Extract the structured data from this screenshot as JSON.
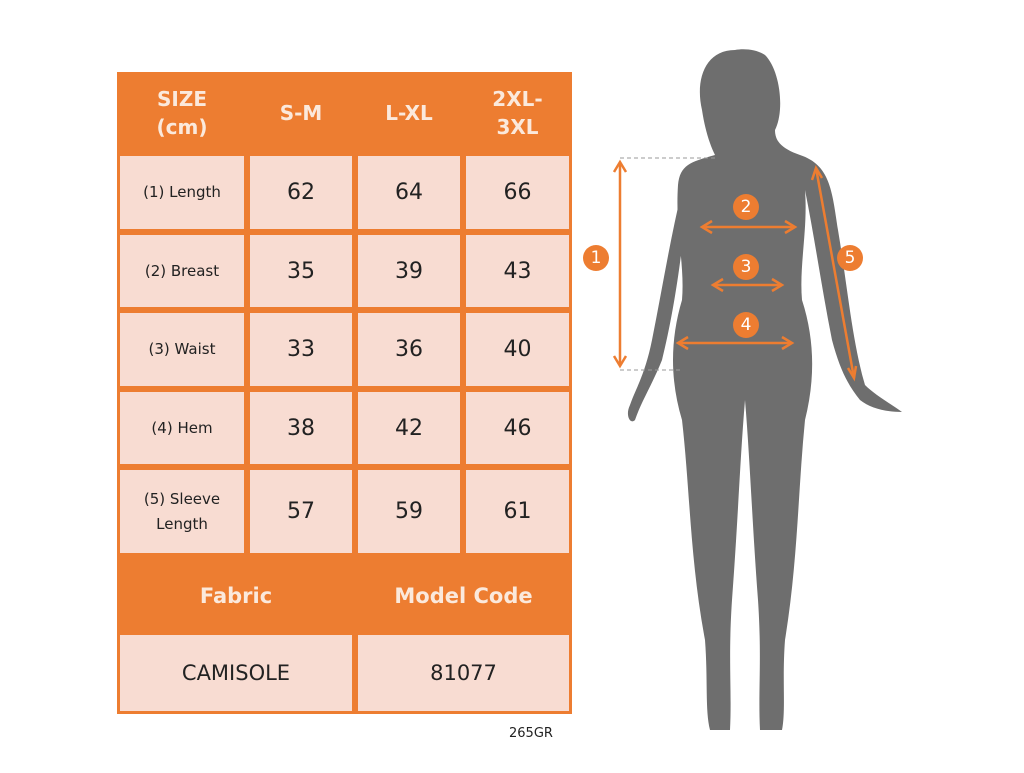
{
  "table": {
    "headers": [
      "SIZE\n(cm)",
      "S-M",
      "L-XL",
      "2XL-\n3XL"
    ],
    "rows": [
      {
        "label": "(1) Length",
        "values": [
          "62",
          "64",
          "66"
        ]
      },
      {
        "label": "(2) Breast",
        "values": [
          "35",
          "39",
          "43"
        ]
      },
      {
        "label": "(3) Waist",
        "values": [
          "33",
          "36",
          "40"
        ]
      },
      {
        "label": "(4) Hem",
        "values": [
          "38",
          "42",
          "46"
        ]
      },
      {
        "label": "(5) Sleeve\nLength",
        "values": [
          "57",
          "59",
          "61"
        ]
      }
    ],
    "footer_headers": [
      "Fabric",
      "Model Code"
    ],
    "footer_values": [
      "CAMISOLE",
      "81077"
    ]
  },
  "code_label": "265GR",
  "figure": {
    "markers": [
      "1",
      "2",
      "3",
      "4",
      "5"
    ]
  },
  "colors": {
    "accent": "#ed7d31",
    "cell": "#f8dcd2",
    "silhouette": "#6e6e6e"
  }
}
